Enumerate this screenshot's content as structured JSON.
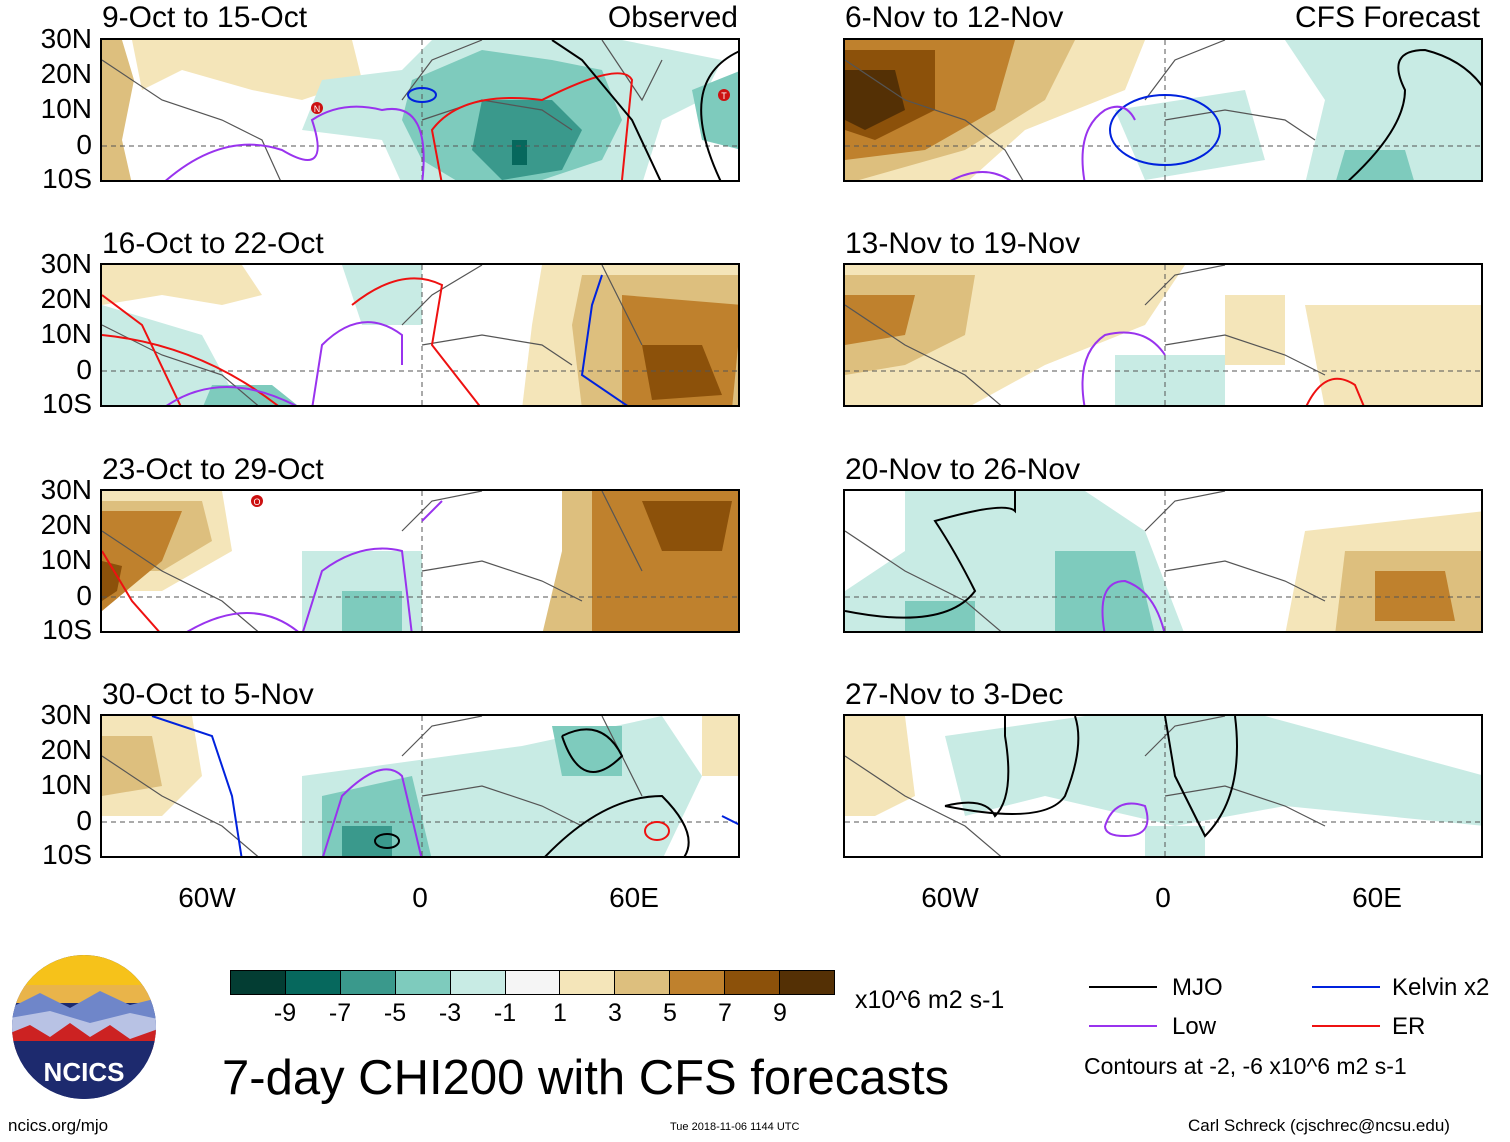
{
  "panels": [
    {
      "date": "9-Oct to 15-Oct",
      "tag": "Observed"
    },
    {
      "date": "16-Oct to 22-Oct",
      "tag": ""
    },
    {
      "date": "23-Oct to 29-Oct",
      "tag": ""
    },
    {
      "date": "30-Oct to 5-Nov",
      "tag": ""
    },
    {
      "date": "6-Nov to 12-Nov",
      "tag": "CFS Forecast"
    },
    {
      "date": "13-Nov to 19-Nov",
      "tag": ""
    },
    {
      "date": "20-Nov to 26-Nov",
      "tag": ""
    },
    {
      "date": "27-Nov to 3-Dec",
      "tag": ""
    }
  ],
  "lat_labels": [
    "30N",
    "20N",
    "10N",
    "0",
    "10S"
  ],
  "lon_labels": [
    "60W",
    "0",
    "60E"
  ],
  "colorbar": {
    "labels": [
      "-9",
      "-7",
      "-5",
      "-3",
      "-1",
      "1",
      "3",
      "5",
      "7",
      "9"
    ],
    "colors": [
      "#033d33",
      "#06685d",
      "#3a998c",
      "#7ecbbd",
      "#c8ebe4",
      "#f5f5f5",
      "#f4e5b9",
      "#ddbf7e",
      "#bf812d",
      "#8c510a",
      "#543005"
    ],
    "units": "x10^6 m2 s-1"
  },
  "main_title": "7-day CHI200 with CFS forecasts",
  "legend": [
    {
      "label": "MJO",
      "color": "#000000"
    },
    {
      "label": "Kelvin x2",
      "color": "#0022dd"
    },
    {
      "label": "Low",
      "color": "#9933ee"
    },
    {
      "label": "ER",
      "color": "#ee1111"
    }
  ],
  "contour_note": "Contours at -2, -6 x10^6 m2 s-1",
  "logo_text": "NCICS",
  "footer": {
    "left": "ncics.org/mjo",
    "center": "Tue 2018-11-06 1144 UTC",
    "right": "Carl Schreck (cjschrec@ncsu.edu)"
  },
  "storm_markers": [
    "N",
    "T",
    "O"
  ]
}
